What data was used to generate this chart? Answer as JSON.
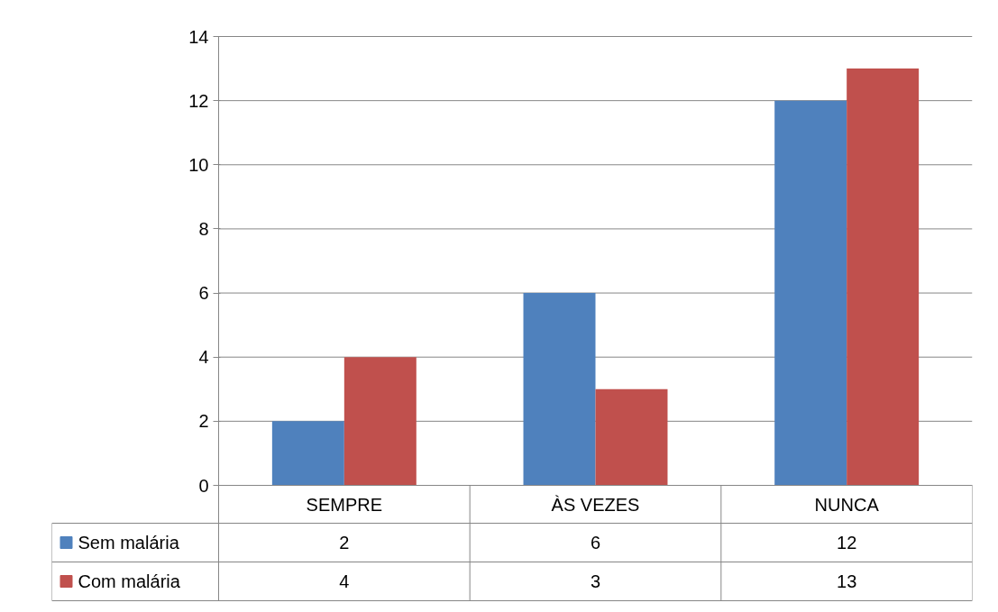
{
  "chart_data": {
    "type": "bar",
    "categories": [
      "SEMPRE",
      "ÀS VEZES",
      "NUNCA"
    ],
    "series": [
      {
        "name": "Sem malária",
        "color": "#4f81bd",
        "values": [
          2,
          6,
          12
        ]
      },
      {
        "name": "Com malária",
        "color": "#c0504d",
        "values": [
          4,
          3,
          13
        ]
      }
    ],
    "ylim": [
      0,
      14
    ],
    "yticks": [
      0,
      2,
      4,
      6,
      8,
      10,
      12,
      14
    ],
    "grid": "y",
    "legend": "bottom",
    "data_labels": true
  }
}
